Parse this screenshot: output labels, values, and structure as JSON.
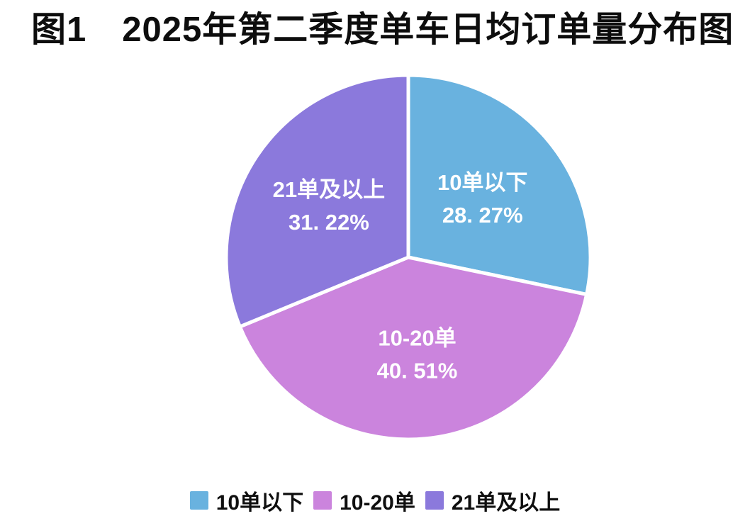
{
  "title": {
    "prefix": "图1",
    "text": "2025年第二季度单车日均订单量分布图"
  },
  "colors": {
    "background": "#ffffff",
    "title_text": "#0d0d0d",
    "slice_label_text": "#ffffff",
    "legend_text": "#0f0f0f",
    "slice_border": "#ffffff"
  },
  "chart_data": {
    "type": "pie",
    "title": "图1 2025年第二季度单车日均订单量分布图",
    "categories": [
      "10单以下",
      "10-20单",
      "21单及以上"
    ],
    "values": [
      28.27,
      40.51,
      31.22
    ],
    "percent_labels": [
      "28. 27%",
      "40. 51%",
      "31. 22%"
    ],
    "slice_colors": [
      "#69b2df",
      "#cb84dd",
      "#8b79dc"
    ],
    "start_angle_deg": -90,
    "direction": "clockwise",
    "legend_position": "bottom",
    "labels_inside": true
  }
}
